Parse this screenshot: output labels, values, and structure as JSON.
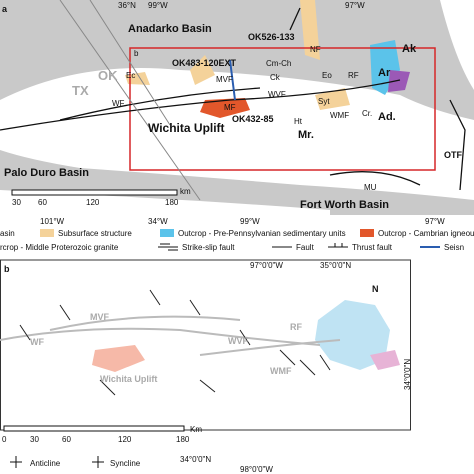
{
  "panel_a": {
    "label": "a",
    "coords_top": [
      "36°N",
      "99°W",
      "97°W"
    ],
    "coords_bottom": [
      "101°W",
      "34°W",
      "99°W",
      "97°W"
    ],
    "places": [
      "Anadarko Basin",
      "OK526-133",
      "b",
      "OK483-120EXT",
      "NF",
      "Ak",
      "Ec",
      "MVF",
      "Cm-Ch",
      "Ck",
      "Eo",
      "RF",
      "Ar",
      "TX",
      "OK",
      "WF",
      "MF",
      "WVF",
      "Syt",
      "WMF",
      "Ad.",
      "Cr.",
      "Wichita Uplift",
      "OK432-85",
      "Ht",
      "Mr.",
      "OTF",
      "Palo Duro Basin",
      "MU",
      "Fort Worth Basin"
    ],
    "scale": [
      "30",
      "60",
      "120",
      "180",
      "km"
    ]
  },
  "legend": [
    "asin",
    "Subsurface structure",
    "Outcrop - Pre-Pennsylvanian sedimentary units",
    "Outcrop - Cambrian igneou",
    "rcrop - Middle Proterozoic granite",
    "Strike-slip fault",
    "Fault",
    "Thrust fault",
    "Seisn"
  ],
  "panel_b": {
    "label": "b",
    "coords": [
      "97°0'0\"W",
      "35°0'0\"N",
      "34°0'0\"N",
      "34°0'0\"N",
      "98°0'0\"W"
    ],
    "north": "N",
    "places": [
      "MVF",
      "WF",
      "RF",
      "WVF",
      "WMF",
      "Wichita Uplift"
    ],
    "scale": [
      "0",
      "30",
      "60",
      "120",
      "180",
      "Km"
    ],
    "legend": [
      "Anticline",
      "Syncline"
    ]
  }
}
